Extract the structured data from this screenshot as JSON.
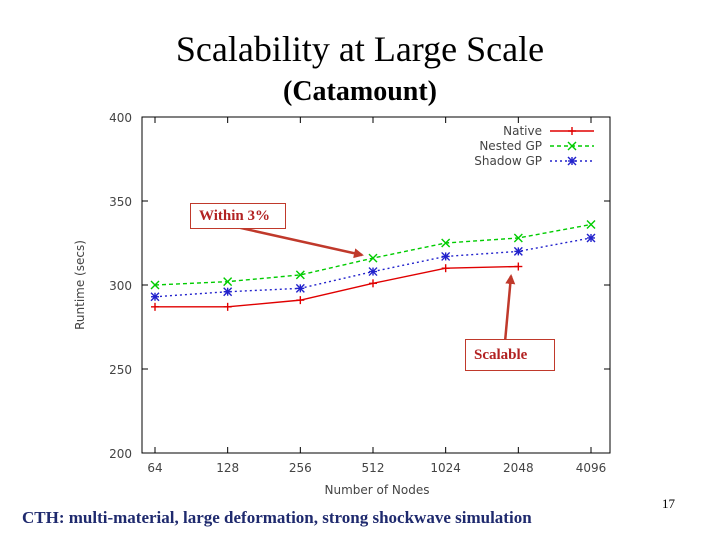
{
  "slide": {
    "title": "Scalability at Large Scale",
    "subtitle": "(Catamount)",
    "caption": "CTH: multi-material, large deformation, strong shockwave simulation",
    "slide_number": "17",
    "annotations": [
      "Within 3%",
      "Scalable"
    ],
    "annotation_color": "#c0392b"
  },
  "chart_data": {
    "type": "line",
    "categories": [
      "64",
      "128",
      "256",
      "512",
      "1024",
      "2048",
      "4096"
    ],
    "xlabel": "Number of Nodes",
    "ylabel": "Runtime (secs)",
    "ylim": [
      200,
      400
    ],
    "yticks": [
      200,
      250,
      300,
      350,
      400
    ],
    "legend_position": "top-right",
    "series": [
      {
        "name": "Native",
        "color": "#e00000",
        "marker": "+",
        "dash": "solid",
        "values": [
          287,
          287,
          291,
          301,
          310,
          311,
          null
        ]
      },
      {
        "name": "Nested GP",
        "color": "#00cc00",
        "marker": "x",
        "dash": "dashed",
        "values": [
          300,
          302,
          306,
          316,
          325,
          328,
          336
        ]
      },
      {
        "name": "Shadow GP",
        "color": "#2222cc",
        "marker": "*",
        "dash": "dotted",
        "values": [
          293,
          296,
          298,
          308,
          317,
          320,
          328
        ]
      }
    ]
  }
}
